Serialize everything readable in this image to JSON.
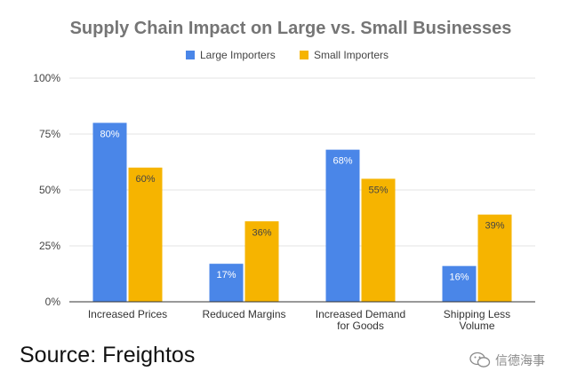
{
  "chart_data": {
    "type": "bar",
    "title": "Supply Chain Impact on Large vs. Small Businesses",
    "categories": [
      [
        "Increased  Prices"
      ],
      [
        "Reduced Margins"
      ],
      [
        "Increased Demand",
        "for Goods"
      ],
      [
        "Shipping Less",
        "Volume"
      ]
    ],
    "series": [
      {
        "name": "Large Importers",
        "values": [
          80,
          17,
          68,
          16
        ],
        "color": "#4a86e8",
        "label_color": "#ffffff"
      },
      {
        "name": "Small Importers",
        "values": [
          60,
          36,
          55,
          39
        ],
        "color": "#f6b400",
        "label_color": "#444444"
      }
    ],
    "yticks": [
      "0%",
      "25%",
      "50%",
      "75%",
      "100%"
    ],
    "ylim": [
      0,
      100
    ],
    "grid": true,
    "legend_position": "top-center",
    "xlabel": "",
    "ylabel": ""
  },
  "source_text": "Source: Freightos",
  "watermark": {
    "text": "信德海事",
    "icon": "wechat-icon"
  }
}
